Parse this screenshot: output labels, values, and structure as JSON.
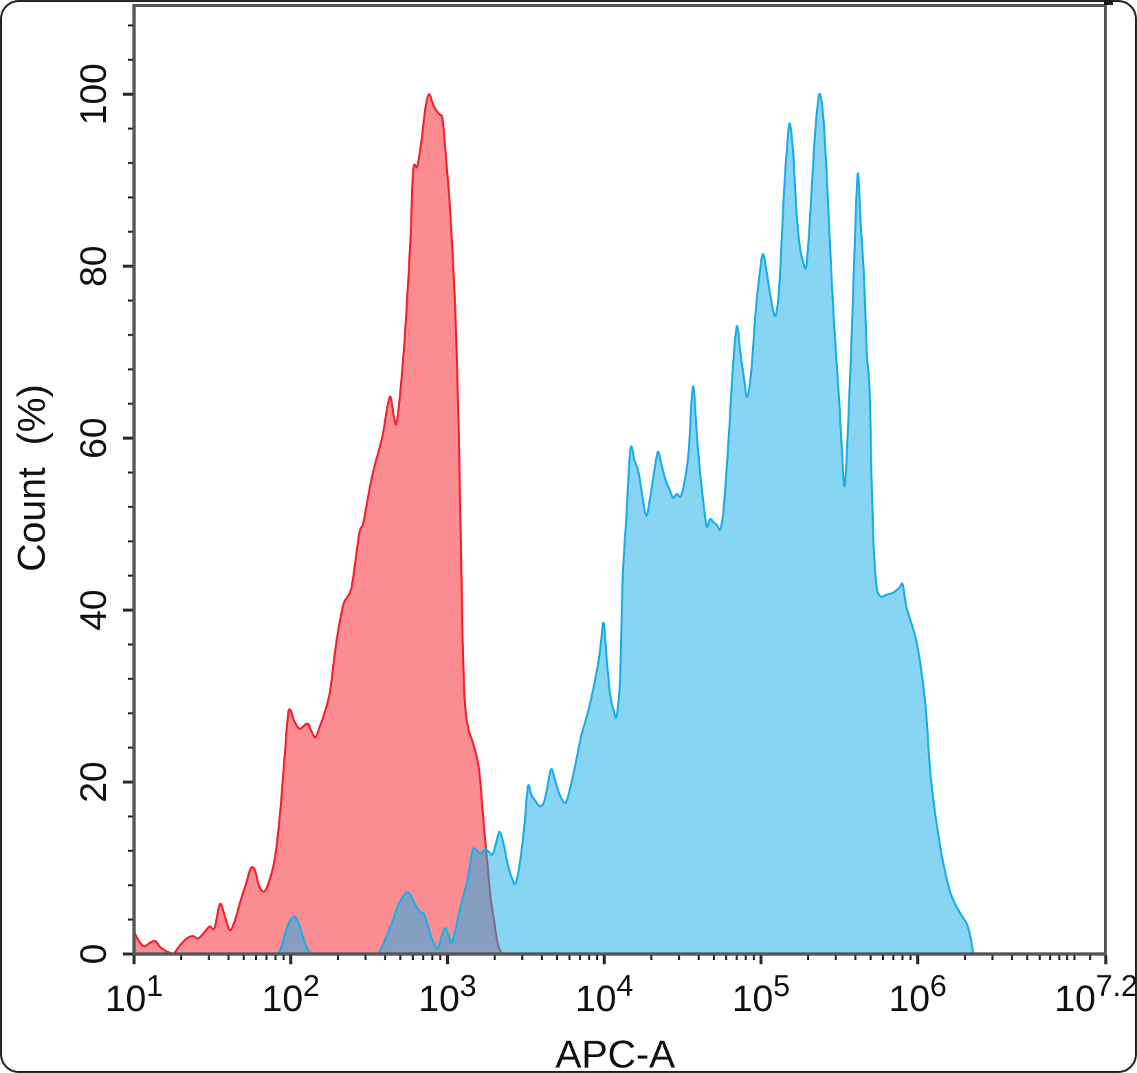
{
  "chart_data": {
    "type": "area",
    "variant": "flow-cytometry-overlay-histogram",
    "title": "",
    "xlabel": "APC-A",
    "ylabel": "Count  (%)",
    "x_scale": "log10",
    "x_range_log10": [
      1.0,
      7.2
    ],
    "ylim": [
      0,
      100
    ],
    "grid": false,
    "legend": "none",
    "y_ticks": [
      0,
      20,
      40,
      60,
      80,
      100
    ],
    "y_minor_step": 4,
    "x_major_ticks": [
      {
        "log10": 1.0,
        "base": "10",
        "exp": "1",
        "label_dx": 0
      },
      {
        "log10": 2.0,
        "base": "10",
        "exp": "2",
        "label_dx": 0
      },
      {
        "log10": 3.0,
        "base": "10",
        "exp": "3",
        "label_dx": 0
      },
      {
        "log10": 4.0,
        "base": "10",
        "exp": "4",
        "label_dx": 0
      },
      {
        "log10": 5.0,
        "base": "10",
        "exp": "5",
        "label_dx": 0
      },
      {
        "log10": 6.0,
        "base": "10",
        "exp": "6",
        "label_dx": 0
      },
      {
        "log10": 7.2,
        "base": "10",
        "exp": "7.2",
        "label_dx": -14
      }
    ],
    "x_extra_minor_ticks_log10": [
      7.0,
      7.1
    ],
    "colors": {
      "red_stroke": "#F5232E",
      "red_fill": "rgba(248,45,55,0.55)",
      "blue_stroke": "#1CAEE8",
      "blue_fill": "rgba(28,174,232,0.53)",
      "overlap_seen": "#859EBF",
      "axis": "#55575B",
      "tick": "#2A2C2E",
      "text": "#121212",
      "frame": "#2B2B2B"
    },
    "series": [
      {
        "id": "red",
        "role": "left-histogram",
        "peak_pct": 100,
        "peak_log10": 2.88,
        "points": [
          [
            1.0,
            2.6
          ],
          [
            1.035,
            1.4
          ],
          [
            1.066,
            0.9
          ],
          [
            1.101,
            1.3
          ],
          [
            1.136,
            1.5
          ],
          [
            1.167,
            0.8
          ],
          [
            1.202,
            0.35
          ],
          [
            1.237,
            0.1
          ],
          [
            1.254,
            0.05
          ],
          [
            1.289,
            0.9
          ],
          [
            1.329,
            1.7
          ],
          [
            1.373,
            2.1
          ],
          [
            1.408,
            1.8
          ],
          [
            1.443,
            2.4
          ],
          [
            1.482,
            3.2
          ],
          [
            1.513,
            3.0
          ],
          [
            1.548,
            5.8
          ],
          [
            1.579,
            4.4
          ],
          [
            1.61,
            2.8
          ],
          [
            1.64,
            3.7
          ],
          [
            1.68,
            6.2
          ],
          [
            1.715,
            8.2
          ],
          [
            1.746,
            10.0
          ],
          [
            1.772,
            9.7
          ],
          [
            1.798,
            7.9
          ],
          [
            1.833,
            7.3
          ],
          [
            1.868,
            8.8
          ],
          [
            1.899,
            11.2
          ],
          [
            1.93,
            16.0
          ],
          [
            1.961,
            23.0
          ],
          [
            1.987,
            28.3
          ],
          [
            2.022,
            27.1
          ],
          [
            2.057,
            26.2
          ],
          [
            2.105,
            26.8
          ],
          [
            2.132,
            25.9
          ],
          [
            2.158,
            25.2
          ],
          [
            2.184,
            26.4
          ],
          [
            2.215,
            28.0
          ],
          [
            2.25,
            30.5
          ],
          [
            2.281,
            35.0
          ],
          [
            2.311,
            38.5
          ],
          [
            2.338,
            40.8
          ],
          [
            2.36,
            41.5
          ],
          [
            2.386,
            42.5
          ],
          [
            2.412,
            45.6
          ],
          [
            2.439,
            49.1
          ],
          [
            2.461,
            50.0
          ],
          [
            2.482,
            52.0
          ],
          [
            2.504,
            54.2
          ],
          [
            2.535,
            56.8
          ],
          [
            2.561,
            58.5
          ],
          [
            2.588,
            60.5
          ],
          [
            2.614,
            63.4
          ],
          [
            2.636,
            64.8
          ],
          [
            2.658,
            62.5
          ],
          [
            2.675,
            61.8
          ],
          [
            2.702,
            66.0
          ],
          [
            2.732,
            73.0
          ],
          [
            2.763,
            83.0
          ],
          [
            2.781,
            91.2
          ],
          [
            2.807,
            91.6
          ],
          [
            2.833,
            94.5
          ],
          [
            2.86,
            98.5
          ],
          [
            2.882,
            100.0
          ],
          [
            2.904,
            99.0
          ],
          [
            2.925,
            98.2
          ],
          [
            2.952,
            97.6
          ],
          [
            2.969,
            97.0
          ],
          [
            2.991,
            92.5
          ],
          [
            3.013,
            87.5
          ],
          [
            3.035,
            80.5
          ],
          [
            3.053,
            73.0
          ],
          [
            3.07,
            62.0
          ],
          [
            3.083,
            50.0
          ],
          [
            3.096,
            37.0
          ],
          [
            3.11,
            29.5
          ],
          [
            3.132,
            26.3
          ],
          [
            3.162,
            24.6
          ],
          [
            3.184,
            23.1
          ],
          [
            3.202,
            21.3
          ],
          [
            3.215,
            18.8
          ],
          [
            3.228,
            15.8
          ],
          [
            3.241,
            13.2
          ],
          [
            3.259,
            9.6
          ],
          [
            3.276,
            6.4
          ],
          [
            3.298,
            3.8
          ],
          [
            3.316,
            1.6
          ],
          [
            3.333,
            0.5
          ],
          [
            3.351,
            0
          ]
        ]
      },
      {
        "id": "blue",
        "role": "right-histogram",
        "peak_pct": 100,
        "peak_log10": 5.38,
        "points": [
          [
            1.921,
            0
          ],
          [
            1.947,
            1.2
          ],
          [
            1.978,
            3.2
          ],
          [
            2.009,
            4.2
          ],
          [
            2.031,
            4.3
          ],
          [
            2.057,
            3.2
          ],
          [
            2.088,
            1.4
          ],
          [
            2.118,
            0.3
          ],
          [
            2.162,
            0
          ],
          [
            2.35,
            0
          ],
          [
            2.535,
            0
          ],
          [
            2.57,
            0.4
          ],
          [
            2.605,
            1.8
          ],
          [
            2.645,
            3.6
          ],
          [
            2.684,
            5.6
          ],
          [
            2.724,
            6.9
          ],
          [
            2.746,
            7.2
          ],
          [
            2.772,
            6.6
          ],
          [
            2.803,
            5.4
          ],
          [
            2.833,
            4.8
          ],
          [
            2.851,
            4.6
          ],
          [
            2.873,
            3.4
          ],
          [
            2.899,
            1.8
          ],
          [
            2.921,
            1.0
          ],
          [
            2.939,
            0.7
          ],
          [
            2.965,
            2.2
          ],
          [
            2.987,
            3.0
          ],
          [
            3.009,
            2.1
          ],
          [
            3.026,
            1.3
          ],
          [
            3.053,
            3.0
          ],
          [
            3.079,
            5.2
          ],
          [
            3.105,
            7.0
          ],
          [
            3.127,
            8.6
          ],
          [
            3.145,
            10.5
          ],
          [
            3.162,
            12.2
          ],
          [
            3.189,
            12.0
          ],
          [
            3.215,
            11.7
          ],
          [
            3.241,
            12.2
          ],
          [
            3.263,
            11.9
          ],
          [
            3.289,
            11.6
          ],
          [
            3.311,
            13.0
          ],
          [
            3.333,
            14.2
          ],
          [
            3.36,
            12.6
          ],
          [
            3.386,
            10.3
          ],
          [
            3.412,
            8.8
          ],
          [
            3.434,
            8.2
          ],
          [
            3.465,
            11.0
          ],
          [
            3.491,
            15.0
          ],
          [
            3.513,
            19.5
          ],
          [
            3.535,
            18.5
          ],
          [
            3.561,
            17.8
          ],
          [
            3.588,
            17.2
          ],
          [
            3.614,
            17.6
          ],
          [
            3.636,
            19.3
          ],
          [
            3.662,
            21.5
          ],
          [
            3.689,
            20.0
          ],
          [
            3.719,
            18.4
          ],
          [
            3.754,
            17.6
          ],
          [
            3.785,
            19.5
          ],
          [
            3.816,
            22.0
          ],
          [
            3.851,
            25.2
          ],
          [
            3.882,
            27.2
          ],
          [
            3.908,
            29.0
          ],
          [
            3.934,
            31.2
          ],
          [
            3.961,
            33.8
          ],
          [
            3.978,
            36.0
          ],
          [
            3.996,
            38.5
          ],
          [
            4.018,
            33.8
          ],
          [
            4.039,
            30.0
          ],
          [
            4.061,
            28.3
          ],
          [
            4.079,
            27.7
          ],
          [
            4.101,
            32.0
          ],
          [
            4.118,
            43.8
          ],
          [
            4.14,
            50.5
          ],
          [
            4.167,
            58.7
          ],
          [
            4.193,
            57.4
          ],
          [
            4.219,
            56.0
          ],
          [
            4.241,
            53.5
          ],
          [
            4.268,
            51.0
          ],
          [
            4.294,
            53.2
          ],
          [
            4.316,
            55.8
          ],
          [
            4.342,
            58.4
          ],
          [
            4.364,
            57.0
          ],
          [
            4.39,
            55.2
          ],
          [
            4.417,
            54.0
          ],
          [
            4.439,
            53.1
          ],
          [
            4.465,
            53.5
          ],
          [
            4.487,
            53.2
          ],
          [
            4.513,
            55.0
          ],
          [
            4.539,
            58.5
          ],
          [
            4.566,
            66.0
          ],
          [
            4.592,
            60.0
          ],
          [
            4.614,
            55.5
          ],
          [
            4.636,
            52.0
          ],
          [
            4.654,
            49.7
          ],
          [
            4.675,
            50.6
          ],
          [
            4.697,
            50.2
          ],
          [
            4.719,
            49.9
          ],
          [
            4.741,
            49.4
          ],
          [
            4.763,
            52.0
          ],
          [
            4.794,
            60.0
          ],
          [
            4.82,
            68.0
          ],
          [
            4.846,
            73.0
          ],
          [
            4.868,
            70.0
          ],
          [
            4.89,
            67.2
          ],
          [
            4.912,
            64.8
          ],
          [
            4.939,
            68.0
          ],
          [
            4.965,
            74.5
          ],
          [
            4.991,
            79.0
          ],
          [
            5.013,
            81.4
          ],
          [
            5.039,
            79.0
          ],
          [
            5.061,
            76.5
          ],
          [
            5.092,
            74.2
          ],
          [
            5.118,
            78.0
          ],
          [
            5.145,
            88.0
          ],
          [
            5.167,
            94.0
          ],
          [
            5.184,
            96.6
          ],
          [
            5.206,
            93.0
          ],
          [
            5.224,
            87.0
          ],
          [
            5.246,
            82.5
          ],
          [
            5.268,
            80.6
          ],
          [
            5.289,
            80.0
          ],
          [
            5.311,
            85.0
          ],
          [
            5.338,
            93.5
          ],
          [
            5.36,
            98.5
          ],
          [
            5.377,
            100.0
          ],
          [
            5.399,
            97.0
          ],
          [
            5.421,
            90.0
          ],
          [
            5.452,
            78.0
          ],
          [
            5.478,
            70.0
          ],
          [
            5.5,
            64.0
          ],
          [
            5.518,
            58.0
          ],
          [
            5.535,
            54.5
          ],
          [
            5.557,
            62.0
          ],
          [
            5.583,
            74.0
          ],
          [
            5.601,
            84.0
          ],
          [
            5.618,
            90.8
          ],
          [
            5.636,
            85.0
          ],
          [
            5.658,
            78.5
          ],
          [
            5.675,
            70.0
          ],
          [
            5.693,
            65.6
          ],
          [
            5.706,
            55.0
          ],
          [
            5.719,
            47.5
          ],
          [
            5.737,
            42.8
          ],
          [
            5.763,
            41.6
          ],
          [
            5.802,
            41.8
          ],
          [
            5.842,
            42.0
          ],
          [
            5.882,
            42.6
          ],
          [
            5.904,
            43.0
          ],
          [
            5.925,
            40.6
          ],
          [
            5.947,
            39.2
          ],
          [
            5.974,
            37.6
          ],
          [
            5.996,
            36.0
          ],
          [
            6.026,
            32.6
          ],
          [
            6.053,
            28.2
          ],
          [
            6.079,
            21.4
          ],
          [
            6.105,
            17.2
          ],
          [
            6.127,
            14.4
          ],
          [
            6.154,
            11.4
          ],
          [
            6.184,
            8.8
          ],
          [
            6.211,
            7.0
          ],
          [
            6.237,
            5.9
          ],
          [
            6.276,
            4.6
          ],
          [
            6.316,
            3.4
          ],
          [
            6.338,
            1.8
          ],
          [
            6.355,
            0
          ]
        ]
      }
    ]
  }
}
